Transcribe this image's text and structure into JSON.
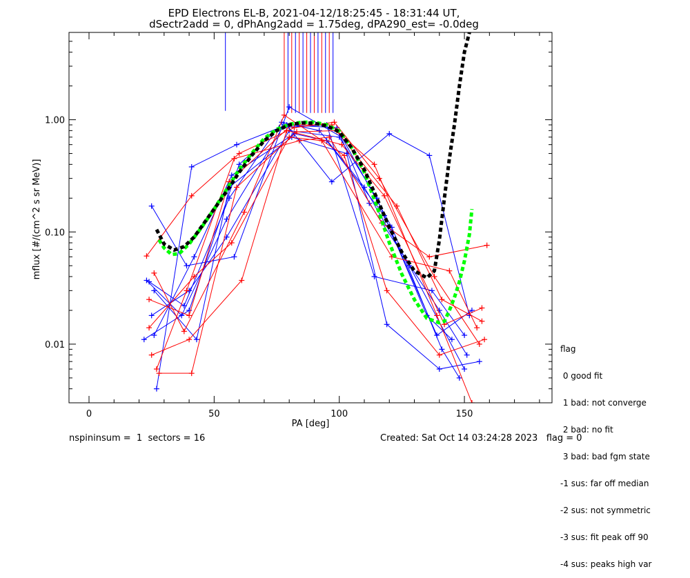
{
  "chart_data": {
    "type": "line",
    "title_line1": "EPD Electrons EL-B, 2021-04-12/18:25:45 - 18:31:44 UT,",
    "title_line2": "dSectr2add = 0, dPhAng2add = 1.75deg, dPA290_est=  -0.0deg",
    "xlabel": "PA [deg]",
    "ylabel": "mflux [#/(cm^2 s sr MeV)]",
    "x_ticks": [
      "0",
      "50",
      "100",
      "150"
    ],
    "y_ticks": [
      "0.01",
      "0.10",
      "1.00"
    ],
    "xlim": [
      -8,
      185
    ],
    "ylim": [
      0.003,
      6.0
    ],
    "y_scale": "log",
    "series_colors": {
      "blue": "#0000ff",
      "red": "#ff0000",
      "fit_black": "#000000",
      "fit_green": "#00ff00"
    },
    "median_fit_black": {
      "x": [
        27,
        30,
        34,
        38,
        42,
        46,
        50,
        55,
        60,
        65,
        70,
        75,
        80,
        85,
        90,
        95,
        100,
        105,
        110,
        115,
        120,
        125,
        130,
        135,
        138,
        140,
        142,
        144,
        146,
        148,
        150,
        152
      ],
      "y": [
        0.105,
        0.078,
        0.069,
        0.074,
        0.09,
        0.12,
        0.16,
        0.23,
        0.34,
        0.48,
        0.65,
        0.8,
        0.9,
        0.94,
        0.93,
        0.88,
        0.78,
        0.56,
        0.36,
        0.2,
        0.11,
        0.066,
        0.045,
        0.039,
        0.045,
        0.085,
        0.2,
        0.45,
        0.9,
        2.0,
        4.0,
        6.0
      ]
    },
    "median_fit_green": {
      "x": [
        28,
        30,
        33,
        36,
        40,
        45,
        50,
        55,
        60,
        65,
        70,
        75,
        80,
        85,
        90,
        95,
        100,
        105,
        110,
        115,
        120,
        125,
        130,
        135,
        140,
        142,
        144,
        146,
        148,
        150,
        152,
        153
      ],
      "y": [
        0.085,
        0.072,
        0.063,
        0.064,
        0.078,
        0.11,
        0.16,
        0.24,
        0.36,
        0.5,
        0.68,
        0.82,
        0.91,
        0.95,
        0.95,
        0.9,
        0.79,
        0.56,
        0.34,
        0.17,
        0.08,
        0.042,
        0.025,
        0.017,
        0.0155,
        0.016,
        0.02,
        0.026,
        0.036,
        0.055,
        0.095,
        0.16
      ]
    },
    "blue_sample_series": [
      {
        "x": [
          25,
          40,
          55,
          80,
          100,
          115,
          135,
          145
        ],
        "y": [
          0.018,
          0.03,
          0.09,
          0.8,
          0.7,
          0.2,
          0.018,
          0.011
        ]
      },
      {
        "x": [
          24,
          38,
          56,
          77,
          92,
          110,
          128,
          150
        ],
        "y": [
          0.036,
          0.022,
          0.2,
          0.95,
          0.8,
          0.25,
          0.05,
          0.006
        ]
      },
      {
        "x": [
          26,
          42,
          57,
          82,
          95,
          118,
          139,
          153
        ],
        "y": [
          0.012,
          0.06,
          0.32,
          0.75,
          0.65,
          0.14,
          0.012,
          0.02
        ]
      },
      {
        "x": [
          27,
          41,
          59,
          79,
          97,
          120,
          136,
          152
        ],
        "y": [
          0.004,
          0.38,
          0.6,
          0.9,
          0.28,
          0.75,
          0.48,
          0.018
        ]
      },
      {
        "x": [
          23,
          37,
          55,
          78,
          99,
          112,
          140,
          151
        ],
        "y": [
          0.037,
          0.018,
          0.13,
          0.9,
          0.85,
          0.18,
          0.02,
          0.008
        ]
      },
      {
        "x": [
          25,
          39,
          58,
          80,
          101,
          121,
          141,
          148
        ],
        "y": [
          0.17,
          0.05,
          0.06,
          1.3,
          0.7,
          0.11,
          0.009,
          0.005
        ]
      },
      {
        "x": [
          22,
          40,
          60,
          76,
          95,
          114,
          137,
          150
        ],
        "y": [
          0.011,
          0.02,
          0.4,
          0.85,
          0.9,
          0.04,
          0.03,
          0.012
        ]
      },
      {
        "x": [
          26,
          43,
          56,
          81,
          103,
          119,
          140,
          156
        ],
        "y": [
          0.03,
          0.011,
          0.25,
          0.7,
          0.5,
          0.015,
          0.006,
          0.007
        ]
      }
    ],
    "red_sample_series": [
      {
        "x": [
          23,
          41,
          60,
          82,
          98,
          116,
          138,
          156
        ],
        "y": [
          0.061,
          0.21,
          0.5,
          0.85,
          0.95,
          0.3,
          0.04,
          0.01
        ]
      },
      {
        "x": [
          25,
          40,
          61,
          79,
          101,
          118,
          142,
          157
        ],
        "y": [
          0.008,
          0.011,
          0.037,
          0.8,
          0.6,
          0.21,
          0.015,
          0.021
        ]
      },
      {
        "x": [
          27,
          39,
          58,
          84,
          96,
          117,
          136,
          159
        ],
        "y": [
          0.006,
          0.03,
          0.45,
          0.65,
          0.7,
          0.12,
          0.06,
          0.076
        ]
      },
      {
        "x": [
          24,
          42,
          57,
          80,
          93,
          121,
          144,
          155
        ],
        "y": [
          0.014,
          0.04,
          0.08,
          0.7,
          0.65,
          0.06,
          0.045,
          0.014
        ]
      },
      {
        "x": [
          26,
          38,
          62,
          78,
          102,
          119,
          140,
          158
        ],
        "y": [
          0.043,
          0.013,
          0.15,
          1.1,
          0.48,
          0.03,
          0.008,
          0.011
        ]
      },
      {
        "x": [
          28,
          41,
          59,
          83,
          99,
          114,
          139,
          153
        ],
        "y": [
          0.0055,
          0.0055,
          0.25,
          0.78,
          0.8,
          0.4,
          0.018,
          0.003
        ]
      },
      {
        "x": [
          24,
          40,
          56,
          81,
          97,
          123,
          141,
          157
        ],
        "y": [
          0.025,
          0.018,
          0.28,
          0.9,
          0.9,
          0.17,
          0.025,
          0.016
        ]
      }
    ],
    "vertical_bar_x": [
      54.5,
      78,
      79.5,
      81,
      82.5,
      84,
      85.5,
      87,
      88.5,
      90,
      91.5,
      93,
      94.5,
      96,
      97.5
    ]
  },
  "footer": {
    "left": "nspininsum =  1  sectors = 16",
    "right": "Created: Sat Oct 14 03:24:28 2023   flag = 0"
  },
  "flag_legend": [
    "flag",
    " 0 good fit",
    " 1 bad: not converge",
    " 2 bad: no fit",
    " 3 bad: bad fgm state",
    "-1 sus: far off median",
    "-2 sus: not symmetric",
    "-3 sus: fit peak off 90",
    "-4 sus: peaks high var"
  ]
}
